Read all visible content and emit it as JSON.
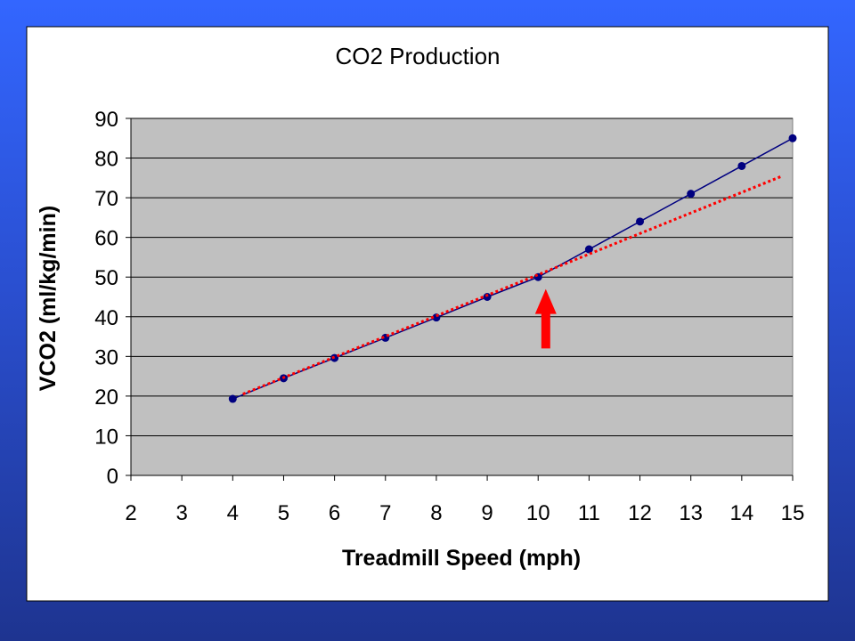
{
  "chart_data": {
    "type": "line",
    "title": "CO2 Production",
    "xlabel": "Treadmill Speed (mph)",
    "ylabel": "VCO2 (ml/kg/min)",
    "xlim": [
      2,
      15
    ],
    "ylim": [
      0,
      90
    ],
    "x_ticks": [
      "2",
      "3",
      "4",
      "5",
      "6",
      "7",
      "8",
      "9",
      "10",
      "11",
      "12",
      "13",
      "14",
      "15"
    ],
    "y_ticks": [
      "0",
      "10",
      "20",
      "30",
      "40",
      "50",
      "60",
      "70",
      "80",
      "90"
    ],
    "grid": "horizontal",
    "legend": "none",
    "series": [
      {
        "x": [
          4,
          5,
          6,
          7,
          8,
          9,
          10,
          11,
          12,
          13,
          14,
          15
        ],
        "y": [
          19.3,
          24.5,
          29.6,
          34.7,
          39.8,
          45,
          50,
          57,
          64,
          71,
          78,
          85
        ],
        "color": "#000080",
        "marker": "circle",
        "line_style": "solid"
      },
      {
        "x": [
          4.2,
          14.8
        ],
        "y": [
          20.5,
          75.5
        ],
        "color": "#ff0000",
        "line_style": "dotted"
      }
    ],
    "annotations": [
      {
        "type": "arrow",
        "direction": "up",
        "x": 10.15,
        "y_tip": 47,
        "y_tail": 32,
        "color": "#ff0000"
      }
    ],
    "colors": {
      "plot_background": "#c0c0c0",
      "chart_background": "#ffffff",
      "gridline": "#000000"
    }
  }
}
